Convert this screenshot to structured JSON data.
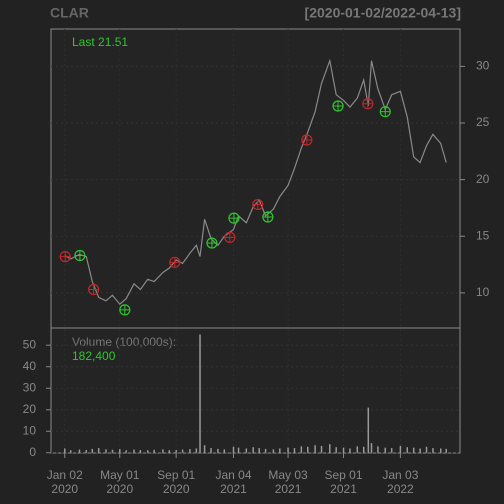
{
  "chart_data": {
    "type": "stock",
    "title": "CLAR",
    "subtitle": "[2020-01-02/2022-04-13]",
    "last_label": "Last 21.51",
    "volume_label": "Volume (100,000s):",
    "volume_last_label": "182,400",
    "x": [
      "2020-01-02",
      "2020-01-15",
      "2020-02-03",
      "2020-02-18",
      "2020-03-02",
      "2020-03-16",
      "2020-04-01",
      "2020-04-15",
      "2020-05-01",
      "2020-05-15",
      "2020-06-01",
      "2020-06-15",
      "2020-07-01",
      "2020-07-15",
      "2020-08-03",
      "2020-08-17",
      "2020-09-01",
      "2020-09-15",
      "2020-10-01",
      "2020-10-15",
      "2020-10-23",
      "2020-11-02",
      "2020-11-16",
      "2020-12-01",
      "2020-12-15",
      "2021-01-04",
      "2021-01-15",
      "2021-02-01",
      "2021-02-16",
      "2021-03-01",
      "2021-03-15",
      "2021-04-01",
      "2021-04-15",
      "2021-05-03",
      "2021-05-17",
      "2021-06-01",
      "2021-06-15",
      "2021-07-01",
      "2021-07-15",
      "2021-08-02",
      "2021-08-16",
      "2021-09-01",
      "2021-09-15",
      "2021-10-01",
      "2021-10-15",
      "2021-10-25",
      "2021-11-01",
      "2021-11-15",
      "2021-12-01",
      "2021-12-15",
      "2022-01-03",
      "2022-01-18",
      "2022-02-01",
      "2022-02-15",
      "2022-03-01",
      "2022-03-15",
      "2022-04-01",
      "2022-04-13"
    ],
    "price": {
      "color": "#8a8a8a",
      "values": [
        13.3,
        13.0,
        13.4,
        13.2,
        11.0,
        9.6,
        9.3,
        9.8,
        9.0,
        9.5,
        10.8,
        10.3,
        11.2,
        11.0,
        11.8,
        12.2,
        12.9,
        12.6,
        13.5,
        14.2,
        13.2,
        16.5,
        14.8,
        14.2,
        15.0,
        15.6,
        16.8,
        16.2,
        17.6,
        18.2,
        16.8,
        17.4,
        18.5,
        19.5,
        21.0,
        22.8,
        24.2,
        26.0,
        28.5,
        30.5,
        27.5,
        27.0,
        26.4,
        27.2,
        28.8,
        26.5,
        30.5,
        28.0,
        26.2,
        27.5,
        27.8,
        25.5,
        22.0,
        21.5,
        23.0,
        24.0,
        23.2,
        21.51
      ]
    },
    "volume": {
      "color": "#9a9a9a",
      "values": [
        2.0,
        1.2,
        1.5,
        1.3,
        1.8,
        2.2,
        1.6,
        1.4,
        1.7,
        1.2,
        1.5,
        1.3,
        1.2,
        1.4,
        1.6,
        1.2,
        1.3,
        1.5,
        1.7,
        2.0,
        55,
        3.5,
        2.2,
        1.8,
        1.6,
        2.8,
        2.4,
        2.0,
        2.6,
        2.2,
        1.8,
        1.6,
        2.0,
        2.4,
        2.2,
        3.0,
        2.8,
        3.5,
        3.2,
        4.0,
        2.6,
        2.4,
        2.0,
        3.0,
        2.8,
        21,
        4.5,
        3.0,
        2.4,
        2.2,
        3.2,
        2.6,
        2.4,
        2.0,
        2.8,
        2.2,
        2.0,
        1.824
      ]
    },
    "signals": [
      {
        "color": "#c0282a",
        "x": [
          "2020-01-03",
          "2020-03-05",
          "2020-08-29",
          "2020-12-27",
          "2021-02-26",
          "2021-06-13",
          "2021-10-24"
        ],
        "values": [
          13.2,
          10.3,
          12.7,
          14.9,
          17.8,
          23.5,
          26.7
        ]
      },
      {
        "color": "#2ec82e",
        "x": [
          "2020-02-04",
          "2020-05-12",
          "2020-11-18",
          "2021-01-05",
          "2021-03-20",
          "2021-08-20",
          "2021-12-01"
        ],
        "values": [
          13.3,
          8.5,
          14.4,
          16.6,
          16.7,
          26.5,
          26.0
        ]
      }
    ],
    "xlim": [
      "2019-12-03",
      "2022-05-13"
    ],
    "xticks": [
      {
        "value": "2020-01-02",
        "label": [
          "Jan 02",
          "2020"
        ]
      },
      {
        "value": "2020-05-01",
        "label": [
          "May 01",
          "2020"
        ]
      },
      {
        "value": "2020-09-01",
        "label": [
          "Sep 01",
          "2020"
        ]
      },
      {
        "value": "2021-01-04",
        "label": [
          "Jan 04",
          "2021"
        ]
      },
      {
        "value": "2021-05-03",
        "label": [
          "May 03",
          "2021"
        ]
      },
      {
        "value": "2021-09-01",
        "label": [
          "Sep 01",
          "2021"
        ]
      },
      {
        "value": "2022-01-03",
        "label": [
          "Jan 03",
          "2022"
        ]
      }
    ],
    "ylim": [
      6.9,
      33.3
    ],
    "yticks": [
      10,
      15,
      20,
      25,
      30
    ],
    "y2lim": [
      -0.1,
      58
    ],
    "y2ticks": [
      0,
      10,
      20,
      30,
      40,
      50
    ],
    "grid": true
  }
}
